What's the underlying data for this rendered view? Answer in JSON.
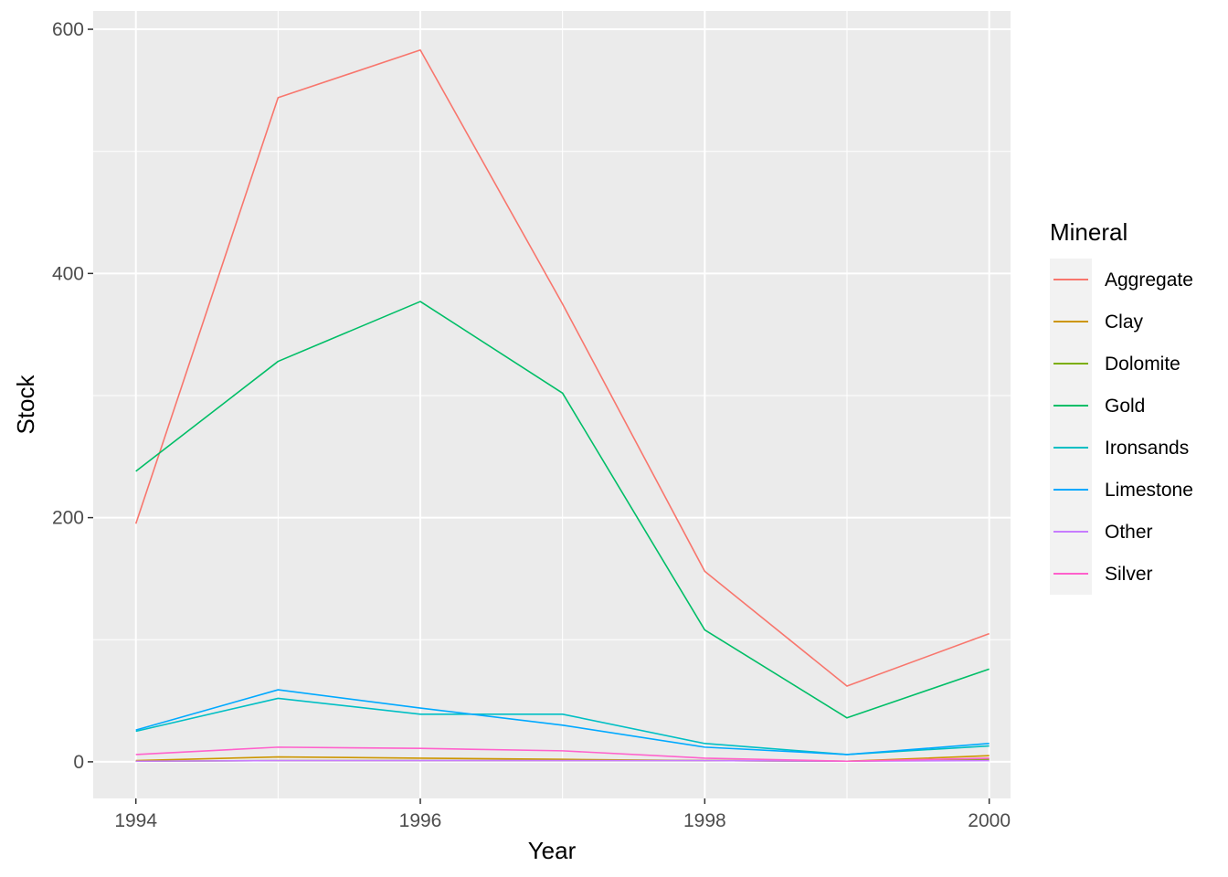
{
  "chart_data": {
    "type": "line",
    "title": "",
    "xlabel": "Year",
    "ylabel": "Stock",
    "x": [
      1994,
      1995,
      1996,
      1997,
      1998,
      1999,
      2000
    ],
    "xlim": [
      1993.7,
      2000.15
    ],
    "ylim": [
      -30,
      615
    ],
    "xticks": [
      1994,
      1996,
      1998,
      2000
    ],
    "yticks": [
      0,
      200,
      400,
      600
    ],
    "grid": true,
    "legend": {
      "title": "Mineral",
      "position": "right"
    },
    "series": [
      {
        "name": "Aggregate",
        "color": "#F8766D",
        "values": [
          195,
          544,
          583,
          375,
          156,
          62,
          105
        ]
      },
      {
        "name": "Clay",
        "color": "#CD9600",
        "values": [
          1,
          4,
          3,
          2,
          1,
          0.5,
          5
        ]
      },
      {
        "name": "Dolomite",
        "color": "#7CAE00",
        "values": [
          0.5,
          1,
          1,
          1,
          1,
          0.5,
          2
        ]
      },
      {
        "name": "Gold",
        "color": "#00BE67",
        "values": [
          238,
          328,
          377,
          302,
          108,
          36,
          76
        ]
      },
      {
        "name": "Ironsands",
        "color": "#00BFC4",
        "values": [
          25,
          52,
          39,
          39,
          15,
          6,
          13
        ]
      },
      {
        "name": "Limestone",
        "color": "#00A9FF",
        "values": [
          26,
          59,
          44,
          30,
          12,
          6,
          15
        ]
      },
      {
        "name": "Other",
        "color": "#C77CFF",
        "values": [
          0.5,
          1,
          1,
          1,
          1,
          0.5,
          1
        ]
      },
      {
        "name": "Silver",
        "color": "#FF61CC",
        "values": [
          6,
          12,
          11,
          9,
          3,
          0.5,
          3
        ]
      }
    ]
  }
}
